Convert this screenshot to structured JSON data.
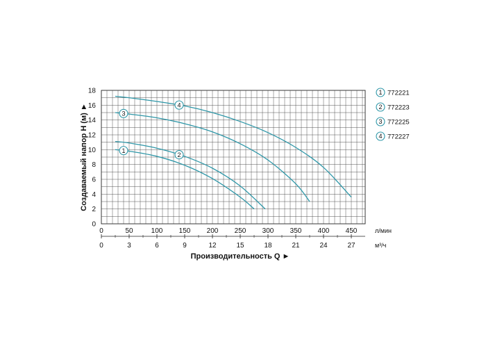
{
  "chart_data": {
    "type": "line",
    "ylabel": "Создаваемый напор Н (м) ►",
    "xlabel": "Производительность Q ►",
    "xlim": [
      0,
      475
    ],
    "ylim": [
      0,
      18
    ],
    "x_unit": "л/мин",
    "x2_unit": "м³/ч",
    "x_ticks": [
      0,
      50,
      100,
      150,
      200,
      250,
      300,
      350,
      400,
      450
    ],
    "x2_ticks": [
      0,
      3,
      6,
      9,
      12,
      15,
      18,
      21,
      24,
      27
    ],
    "y_ticks": [
      0,
      2,
      4,
      6,
      8,
      10,
      12,
      14,
      16,
      18
    ],
    "grid": true,
    "legend_position": "right",
    "curve_color": "#2e97a8",
    "series": [
      {
        "name": "772221",
        "marker": "1",
        "marker_x": 40,
        "x": [
          25,
          50,
          100,
          150,
          200,
          250,
          275
        ],
        "y": [
          10.0,
          9.8,
          9.1,
          7.9,
          6.1,
          3.6,
          2.0
        ]
      },
      {
        "name": "772223",
        "marker": "2",
        "marker_x": 140,
        "x": [
          25,
          50,
          100,
          150,
          200,
          250,
          295
        ],
        "y": [
          11.1,
          10.9,
          10.2,
          9.1,
          7.5,
          5.1,
          2.0
        ]
      },
      {
        "name": "772225",
        "marker": "3",
        "marker_x": 40,
        "x": [
          25,
          50,
          100,
          150,
          200,
          250,
          300,
          350,
          375
        ],
        "y": [
          15.0,
          14.8,
          14.3,
          13.5,
          12.4,
          10.8,
          8.6,
          5.4,
          3.0
        ]
      },
      {
        "name": "772227",
        "marker": "4",
        "marker_x": 140,
        "x": [
          25,
          50,
          100,
          150,
          200,
          250,
          300,
          350,
          400,
          450
        ],
        "y": [
          17.2,
          17.0,
          16.5,
          15.9,
          15.0,
          13.8,
          12.3,
          10.3,
          7.6,
          3.6
        ]
      }
    ]
  }
}
